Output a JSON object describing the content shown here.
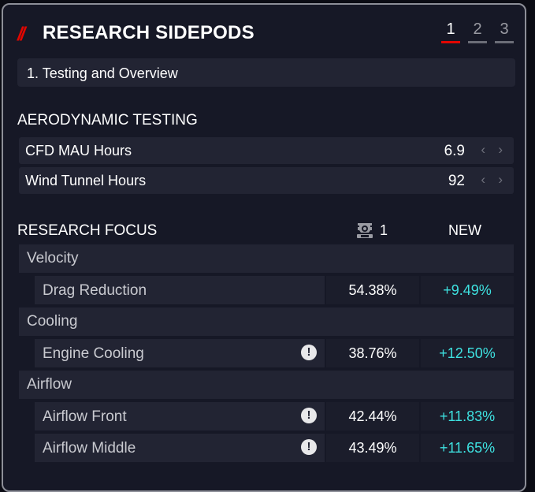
{
  "header": {
    "slashes": "//",
    "title": "RESEARCH SIDEPODS",
    "pages": [
      "1",
      "2",
      "3"
    ]
  },
  "subtitle": "1. Testing and Overview",
  "aero": {
    "title": "AERODYNAMIC TESTING",
    "rows": [
      {
        "label": "CFD MAU Hours",
        "value": "6.9"
      },
      {
        "label": "Wind Tunnel Hours",
        "value": "92"
      }
    ]
  },
  "focus": {
    "title": "RESEARCH FOCUS",
    "driver_count": "1",
    "new_label": "NEW",
    "categories": [
      {
        "name": "Velocity",
        "items": [
          {
            "name": "Drag Reduction",
            "current": "54.38%",
            "new": "+9.49%",
            "warning": false
          }
        ]
      },
      {
        "name": "Cooling",
        "items": [
          {
            "name": "Engine Cooling",
            "current": "38.76%",
            "new": "+12.50%",
            "warning": true
          }
        ]
      },
      {
        "name": "Airflow",
        "items": [
          {
            "name": "Airflow Front",
            "current": "42.44%",
            "new": "+11.83%",
            "warning": true
          },
          {
            "name": "Airflow Middle",
            "current": "43.49%",
            "new": "+11.65%",
            "warning": true
          }
        ]
      }
    ]
  },
  "icons": {
    "warning": "!",
    "arrow_left": "‹",
    "arrow_right": "›"
  },
  "colors": {
    "accent": "#e10600",
    "positive": "#3ee1e0"
  }
}
